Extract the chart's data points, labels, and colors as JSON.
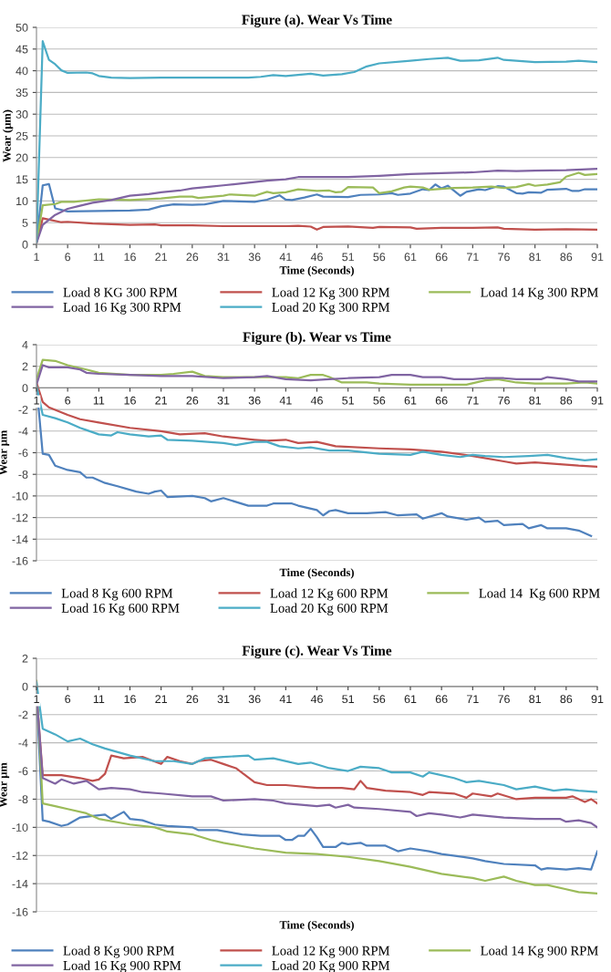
{
  "chart_data": [
    {
      "type": "line",
      "title": "Figure (a). Wear Vs Time",
      "xlabel": "Time (Seconds)",
      "ylabel": "Wear (μm)",
      "xlim": [
        1,
        91
      ],
      "xticks": [
        1,
        6,
        11,
        16,
        21,
        26,
        31,
        36,
        41,
        46,
        51,
        56,
        61,
        66,
        71,
        76,
        81,
        86,
        91
      ],
      "ylim": [
        0,
        50
      ],
      "yticks": [
        0,
        5,
        10,
        15,
        20,
        25,
        30,
        35,
        40,
        45,
        50
      ],
      "grid": "y",
      "legend": "bottom",
      "marker": "none",
      "line_style": "solid",
      "series": [
        {
          "name": "Load 8 KG 300 RPM",
          "color": "#4f81bd",
          "x": [
            1,
            2,
            3,
            4,
            6,
            11,
            16,
            19,
            21,
            23,
            26,
            28,
            31,
            36,
            38,
            40,
            41,
            42,
            44,
            46,
            47,
            51,
            53,
            56,
            58,
            59,
            61,
            63,
            64,
            65,
            66,
            67,
            69,
            70,
            72,
            73,
            75,
            76,
            78,
            79,
            80,
            82,
            83,
            86,
            87,
            88,
            89,
            91
          ],
          "values": [
            0.5,
            13.6,
            13.9,
            8.3,
            7.6,
            7.7,
            7.8,
            8,
            8.8,
            9.2,
            9.1,
            9.2,
            10,
            9.8,
            10.3,
            11.3,
            10.3,
            10.2,
            10.8,
            11.5,
            11,
            10.9,
            11.4,
            11.5,
            11.8,
            11.4,
            11.7,
            12.7,
            12.5,
            13.8,
            12.9,
            13.5,
            11.2,
            12.1,
            12.7,
            12.5,
            13.4,
            13.3,
            11.8,
            11.7,
            12,
            11.9,
            12.6,
            12.8,
            12.3,
            12.3,
            12.7,
            12.7
          ]
        },
        {
          "name": "Load 12 Kg 300 RPM",
          "color": "#c0504d",
          "x": [
            1,
            2,
            3,
            5,
            6,
            10,
            16,
            20,
            21,
            26,
            31,
            36,
            41,
            43,
            45,
            46,
            47,
            51,
            55,
            56,
            61,
            62,
            66,
            71,
            75,
            76,
            81,
            86,
            91
          ],
          "values": [
            0.3,
            6,
            5.7,
            5.1,
            5.2,
            4.8,
            4.5,
            4.6,
            4.4,
            4.4,
            4.2,
            4.2,
            4.2,
            4.3,
            4.1,
            3.4,
            4,
            4.1,
            3.8,
            4,
            3.9,
            3.6,
            3.8,
            3.8,
            3.9,
            3.6,
            3.4,
            3.5,
            3.4
          ]
        },
        {
          "name": "Load 14 Kg 300 RPM",
          "color": "#9bbb59",
          "x": [
            1,
            2,
            4,
            5,
            7,
            11,
            16,
            21,
            24,
            26,
            27,
            31,
            32,
            36,
            38,
            39,
            41,
            43,
            46,
            48,
            49,
            50,
            51,
            55,
            56,
            58,
            60,
            61,
            63,
            64,
            66,
            68,
            71,
            74,
            76,
            78,
            80,
            81,
            83,
            85,
            86,
            88,
            89,
            91
          ],
          "values": [
            0.3,
            9,
            9.3,
            9.8,
            9.8,
            10.4,
            10.2,
            10.6,
            11,
            11,
            10.7,
            11.2,
            11.5,
            11.2,
            12.1,
            11.8,
            12,
            12.7,
            12.3,
            12.4,
            12,
            12.1,
            13.2,
            13.1,
            11.8,
            12.2,
            13.1,
            13.3,
            13.1,
            12.6,
            12.8,
            13,
            13.1,
            13.3,
            13,
            13.2,
            13.9,
            13.5,
            13.8,
            14.3,
            15.6,
            16.5,
            16,
            16.2
          ]
        },
        {
          "name": "Load 16 Kg 300 RPM",
          "color": "#8064a2",
          "x": [
            1,
            2,
            4,
            6,
            8,
            10,
            13,
            16,
            19,
            21,
            24,
            26,
            29,
            31,
            35,
            38,
            41,
            43,
            46,
            51,
            56,
            61,
            66,
            71,
            75,
            78,
            81,
            86,
            91
          ],
          "values": [
            0.3,
            4.5,
            6.8,
            8.2,
            8.9,
            9.6,
            10.2,
            11.2,
            11.6,
            12,
            12.4,
            12.9,
            13.3,
            13.6,
            14.2,
            14.7,
            15,
            15.5,
            15.5,
            15.5,
            15.8,
            16.2,
            16.4,
            16.6,
            17,
            16.9,
            17,
            17.1,
            17.4
          ]
        },
        {
          "name": "Load 20 Kg 300 RPM",
          "color": "#4bacc6",
          "x": [
            1,
            2,
            3,
            4,
            5,
            6,
            9,
            10,
            11,
            13,
            16,
            21,
            31,
            35,
            37,
            39,
            41,
            45,
            47,
            50,
            52,
            54,
            56,
            61,
            64,
            67,
            69,
            72,
            75,
            76,
            81,
            86,
            88,
            91
          ],
          "values": [
            0.5,
            46.8,
            42.5,
            41.5,
            40.1,
            39.5,
            39.6,
            39.4,
            38.8,
            38.4,
            38.3,
            38.4,
            38.4,
            38.4,
            38.6,
            39,
            38.8,
            39.3,
            38.9,
            39.2,
            39.7,
            41,
            41.7,
            42.3,
            42.7,
            43,
            42.3,
            42.4,
            43,
            42.5,
            42,
            42.1,
            42.3,
            42
          ]
        }
      ]
    },
    {
      "type": "line",
      "title": "Figure (b). Wear vs Time",
      "xlabel": "Time (Seconds)",
      "ylabel": "Wear μm",
      "xlim": [
        1,
        91
      ],
      "xticks": [
        1,
        6,
        11,
        16,
        21,
        26,
        31,
        36,
        41,
        46,
        51,
        56,
        61,
        66,
        71,
        76,
        81,
        86,
        91
      ],
      "ylim": [
        -16,
        4
      ],
      "yticks": [
        -16,
        -14,
        -12,
        -10,
        -8,
        -6,
        -4,
        -2,
        0,
        2,
        4
      ],
      "grid": "y",
      "legend": "bottom",
      "marker": "none",
      "line_style": "solid",
      "series": [
        {
          "name": "Load 8 Kg 600 RPM",
          "color": "#4f81bd",
          "x": [
            1,
            2,
            3,
            4,
            6,
            8,
            9,
            10,
            12,
            14,
            17,
            19,
            20,
            21,
            22,
            26,
            28,
            29,
            31,
            35,
            38,
            39,
            42,
            43,
            46,
            47,
            48,
            49,
            51,
            54,
            57,
            59,
            62,
            63,
            66,
            67,
            70,
            72,
            73,
            75,
            76,
            79,
            80,
            82,
            83,
            86,
            88,
            90
          ],
          "values": [
            0.3,
            -6.1,
            -6.2,
            -7.2,
            -7.6,
            -7.8,
            -8.3,
            -8.3,
            -8.8,
            -9.1,
            -9.6,
            -9.8,
            -9.6,
            -9.5,
            -10.1,
            -10,
            -10.2,
            -10.5,
            -10.2,
            -10.9,
            -10.9,
            -10.7,
            -10.7,
            -10.9,
            -11.3,
            -11.8,
            -11.4,
            -11.3,
            -11.6,
            -11.6,
            -11.5,
            -11.8,
            -11.7,
            -12.1,
            -11.6,
            -11.9,
            -12.2,
            -12,
            -12.4,
            -12.3,
            -12.7,
            -12.6,
            -13,
            -12.7,
            -13,
            -13,
            -13.2,
            -13.7
          ]
        },
        {
          "name": "Load 12 Kg 600 RPM",
          "color": "#c0504d",
          "x": [
            1,
            2,
            3,
            6,
            8,
            11,
            16,
            21,
            24,
            28,
            31,
            36,
            38,
            41,
            43,
            46,
            49,
            56,
            61,
            66,
            71,
            76,
            78,
            81,
            86,
            88,
            91
          ],
          "values": [
            0.5,
            -1.3,
            -1.8,
            -2.5,
            -2.9,
            -3.2,
            -3.7,
            -4,
            -4.3,
            -4.2,
            -4.5,
            -4.8,
            -4.9,
            -4.8,
            -5.1,
            -5,
            -5.4,
            -5.6,
            -5.7,
            -5.9,
            -6.3,
            -6.8,
            -7,
            -6.9,
            -7.1,
            -7.2,
            -7.3
          ]
        },
        {
          "name": "Load 14  Kg 600 RPM",
          "color": "#9bbb59",
          "x": [
            1,
            2,
            4,
            6,
            9,
            11,
            16,
            21,
            23,
            26,
            28,
            31,
            36,
            41,
            43,
            45,
            47,
            48,
            50,
            51,
            54,
            56,
            61,
            66,
            70,
            73,
            75,
            78,
            81,
            86,
            89,
            91
          ],
          "values": [
            0.8,
            2.6,
            2.5,
            2.1,
            1.7,
            1.4,
            1.2,
            1.2,
            1.3,
            1.5,
            1.1,
            1,
            1,
            1,
            0.9,
            1.2,
            1.2,
            1,
            0.5,
            0.5,
            0.5,
            0.4,
            0.3,
            0.3,
            0.3,
            0.7,
            0.8,
            0.5,
            0.4,
            0.4,
            0.5,
            0.4
          ]
        },
        {
          "name": "Load 16 Kg 600 RPM",
          "color": "#8064a2",
          "x": [
            1,
            2,
            3,
            6,
            8,
            9,
            11,
            16,
            21,
            26,
            31,
            36,
            38,
            41,
            45,
            48,
            51,
            56,
            58,
            61,
            63,
            66,
            68,
            71,
            73,
            76,
            78,
            82,
            83,
            86,
            88,
            91
          ],
          "values": [
            0.3,
            2.1,
            1.9,
            1.9,
            1.7,
            1.4,
            1.3,
            1.2,
            1.1,
            1.1,
            0.9,
            1,
            1.1,
            0.8,
            0.7,
            0.8,
            0.9,
            1,
            1.2,
            1.2,
            1,
            1,
            0.8,
            0.8,
            0.9,
            0.9,
            0.8,
            0.8,
            1,
            0.8,
            0.6,
            0.6
          ]
        },
        {
          "name": "Load 20 Kg 600 RPM",
          "color": "#4bacc6",
          "x": [
            1,
            2,
            4,
            6,
            8,
            9,
            11,
            13,
            14,
            16,
            19,
            21,
            22,
            26,
            31,
            33,
            36,
            38,
            40,
            43,
            45,
            48,
            51,
            56,
            61,
            63,
            66,
            69,
            71,
            73,
            76,
            80,
            83,
            86,
            89,
            91
          ],
          "values": [
            0.2,
            -2.5,
            -2.8,
            -3.2,
            -3.7,
            -3.9,
            -4.3,
            -4.4,
            -4.1,
            -4.3,
            -4.5,
            -4.4,
            -4.8,
            -4.9,
            -5.1,
            -5.3,
            -5,
            -5,
            -5.4,
            -5.6,
            -5.5,
            -5.8,
            -5.8,
            -6.1,
            -6.2,
            -5.9,
            -6.2,
            -6.4,
            -6.2,
            -6.3,
            -6.4,
            -6.3,
            -6.2,
            -6.5,
            -6.7,
            -6.6
          ]
        }
      ]
    },
    {
      "type": "line",
      "title": "Figure (c). Wear Vs Time",
      "xlabel": "Time (Seconds)",
      "ylabel": "Wear μm",
      "xlim": [
        1,
        91
      ],
      "xticks": [
        1,
        6,
        11,
        16,
        21,
        26,
        31,
        36,
        41,
        46,
        51,
        56,
        61,
        66,
        71,
        76,
        81,
        86,
        91
      ],
      "ylim": [
        -16,
        2
      ],
      "yticks": [
        -16,
        -14,
        -12,
        -10,
        -8,
        -6,
        -4,
        -2,
        0,
        2
      ],
      "grid": "y",
      "legend": "bottom",
      "marker": "none",
      "line_style": "solid",
      "series": [
        {
          "name": "Load 8 Kg 900 RPM",
          "color": "#4f81bd",
          "x": [
            1,
            2,
            3,
            5,
            6,
            8,
            10,
            12,
            13,
            15,
            16,
            18,
            20,
            22,
            26,
            27,
            30,
            34,
            37,
            40,
            41,
            42,
            43,
            44,
            45,
            46,
            47,
            49,
            50,
            51,
            53,
            54,
            57,
            59,
            61,
            64,
            66,
            71,
            73,
            76,
            81,
            82,
            83,
            86,
            88,
            90,
            91
          ],
          "values": [
            -0.5,
            -9.5,
            -9.6,
            -9.9,
            -9.8,
            -9.3,
            -9.2,
            -9.1,
            -9.4,
            -8.9,
            -9.4,
            -9.5,
            -9.8,
            -9.9,
            -10,
            -10.2,
            -10.2,
            -10.5,
            -10.6,
            -10.6,
            -10.9,
            -10.9,
            -10.6,
            -10.6,
            -10.1,
            -10.7,
            -11.4,
            -11.4,
            -11.1,
            -11.2,
            -11.1,
            -11.3,
            -11.3,
            -11.7,
            -11.5,
            -11.7,
            -11.9,
            -12.2,
            -12.4,
            -12.6,
            -12.7,
            -13,
            -12.9,
            -13,
            -12.9,
            -13,
            -11.7
          ]
        },
        {
          "name": "Load 12 Kg 900 RPM",
          "color": "#c0504d",
          "x": [
            1,
            2,
            5,
            8,
            10,
            11,
            12,
            13,
            15,
            18,
            21,
            22,
            24,
            26,
            27,
            29,
            31,
            33,
            36,
            38,
            41,
            46,
            50,
            52,
            53,
            54,
            57,
            61,
            63,
            64,
            68,
            70,
            71,
            74,
            75,
            78,
            81,
            86,
            87,
            89,
            90,
            91
          ],
          "values": [
            -0.5,
            -6.3,
            -6.3,
            -6.5,
            -6.7,
            -6.6,
            -6.2,
            -4.9,
            -5.1,
            -5,
            -5.5,
            -5,
            -5.3,
            -5.5,
            -5.3,
            -5.2,
            -5.5,
            -5.8,
            -6.8,
            -7,
            -7,
            -7.2,
            -7.2,
            -7.3,
            -6.7,
            -7.2,
            -7.4,
            -7.5,
            -7.7,
            -7.5,
            -7.6,
            -7.9,
            -7.6,
            -7.8,
            -7.6,
            -8,
            -7.9,
            -7.9,
            -7.8,
            -8.2,
            -8,
            -8.3
          ]
        },
        {
          "name": "Load 14 Kg 900 RPM",
          "color": "#9bbb59",
          "x": [
            1,
            2,
            4,
            6,
            9,
            11,
            16,
            20,
            22,
            26,
            29,
            31,
            36,
            41,
            46,
            51,
            56,
            61,
            66,
            71,
            73,
            76,
            78,
            81,
            83,
            86,
            88,
            91
          ],
          "values": [
            0.4,
            -8.3,
            -8.5,
            -8.7,
            -9,
            -9.4,
            -9.8,
            -10,
            -10.3,
            -10.5,
            -10.9,
            -11.1,
            -11.5,
            -11.8,
            -11.9,
            -12.1,
            -12.4,
            -12.8,
            -13.3,
            -13.6,
            -13.8,
            -13.5,
            -13.8,
            -14.1,
            -14.1,
            -14.4,
            -14.6,
            -14.7
          ]
        },
        {
          "name": "Load 16 Kg 900 RPM",
          "color": "#8064a2",
          "x": [
            1,
            2,
            4,
            5,
            7,
            9,
            11,
            13,
            16,
            18,
            21,
            26,
            29,
            31,
            36,
            39,
            41,
            46,
            48,
            49,
            51,
            52,
            56,
            61,
            62,
            64,
            66,
            69,
            71,
            76,
            81,
            85,
            86,
            88,
            90,
            91
          ],
          "values": [
            -0.5,
            -6.5,
            -6.9,
            -6.6,
            -6.9,
            -6.7,
            -7.3,
            -7.2,
            -7.3,
            -7.5,
            -7.6,
            -7.8,
            -7.8,
            -8.1,
            -8,
            -8.1,
            -8.3,
            -8.5,
            -8.4,
            -8.6,
            -8.4,
            -8.6,
            -8.7,
            -8.9,
            -9.2,
            -9,
            -9.1,
            -9.3,
            -9.1,
            -9.3,
            -9.4,
            -9.4,
            -9.6,
            -9.5,
            -9.7,
            -10
          ]
        },
        {
          "name": "Load 20 Kg 900 RPM",
          "color": "#4bacc6",
          "x": [
            1,
            2,
            4,
            6,
            8,
            10,
            12,
            16,
            20,
            23,
            26,
            28,
            31,
            35,
            36,
            39,
            43,
            45,
            48,
            51,
            53,
            56,
            58,
            61,
            63,
            64,
            68,
            70,
            72,
            76,
            78,
            81,
            84,
            86,
            88,
            91
          ],
          "values": [
            0.3,
            -3,
            -3.4,
            -3.9,
            -3.7,
            -4.1,
            -4.4,
            -4.9,
            -5.3,
            -5.3,
            -5.5,
            -5.1,
            -5,
            -4.9,
            -5.2,
            -5.1,
            -5.5,
            -5.4,
            -5.8,
            -6,
            -5.7,
            -5.8,
            -6.1,
            -6.1,
            -6.4,
            -6.1,
            -6.5,
            -6.8,
            -6.7,
            -7,
            -7.3,
            -7.1,
            -7.4,
            -7.3,
            -7.4,
            -7.5
          ]
        }
      ]
    }
  ]
}
